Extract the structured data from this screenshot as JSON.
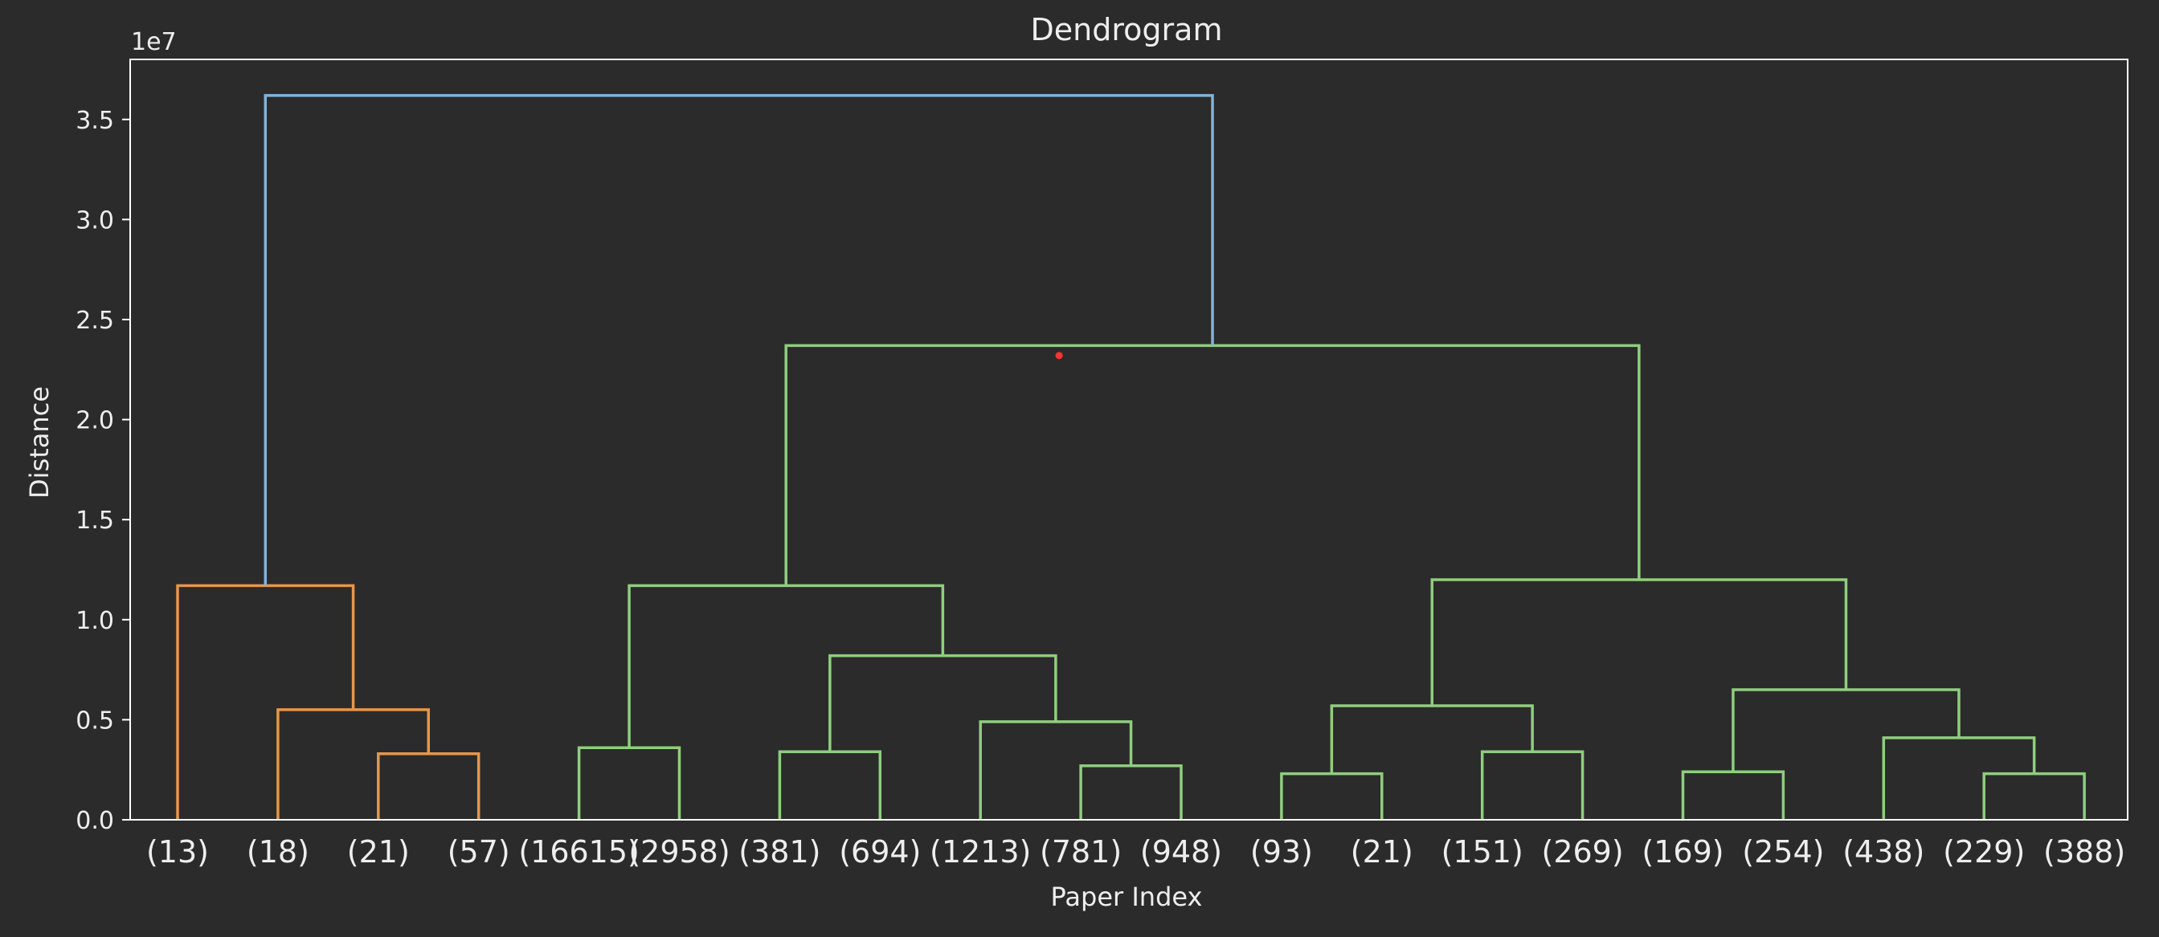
{
  "chart_data": {
    "type": "dendrogram",
    "title": "Dendrogram",
    "xlabel": "Paper Index",
    "ylabel": "Distance",
    "y_scale_label": "1e7",
    "ylim": [
      0,
      3.8
    ],
    "yticks": [
      0.0,
      0.5,
      1.0,
      1.5,
      2.0,
      2.5,
      3.0,
      3.5
    ],
    "grid": false,
    "colors": {
      "background": "#2b2b2b",
      "axes": "#ffffff",
      "text": "#eeeeee",
      "orange": "#e8964a",
      "green": "#8fce7e",
      "blue": "#7fb4dc",
      "marker": "#ff3333"
    },
    "leaves": [
      "(13)",
      "(18)",
      "(21)",
      "(57)",
      "(16615)",
      "(2958)",
      "(381)",
      "(694)",
      "(1213)",
      "(781)",
      "(948)",
      "(93)",
      "(21)",
      "(151)",
      "(269)",
      "(169)",
      "(254)",
      "(438)",
      "(229)",
      "(388)"
    ],
    "merges": [
      {
        "left": 2,
        "right": 3,
        "height": 0.33,
        "color": "orange"
      },
      {
        "left": 1,
        "right": "m0",
        "height": 0.55,
        "color": "orange"
      },
      {
        "left": 0,
        "right": "m1",
        "height": 1.17,
        "color": "orange"
      },
      {
        "left": 4,
        "right": 5,
        "height": 0.36,
        "color": "green"
      },
      {
        "left": 6,
        "right": 7,
        "height": 0.34,
        "color": "green"
      },
      {
        "left": 9,
        "right": 10,
        "height": 0.27,
        "color": "green"
      },
      {
        "left": 8,
        "right": "m5",
        "height": 0.49,
        "color": "green"
      },
      {
        "left": "m4",
        "right": "m6",
        "height": 0.82,
        "color": "green"
      },
      {
        "left": "m3",
        "right": "m7",
        "height": 1.17,
        "color": "green"
      },
      {
        "left": 11,
        "right": 12,
        "height": 0.23,
        "color": "green"
      },
      {
        "left": 13,
        "right": 14,
        "height": 0.34,
        "color": "green"
      },
      {
        "left": "m9",
        "right": "m10",
        "height": 0.57,
        "color": "green"
      },
      {
        "left": 15,
        "right": 16,
        "height": 0.24,
        "color": "green"
      },
      {
        "left": 18,
        "right": 19,
        "height": 0.23,
        "color": "green"
      },
      {
        "left": 17,
        "right": "m13",
        "height": 0.41,
        "color": "green"
      },
      {
        "left": "m12",
        "right": "m14",
        "height": 0.65,
        "color": "green"
      },
      {
        "left": "m11",
        "right": "m15",
        "height": 1.2,
        "color": "green"
      },
      {
        "left": "m8",
        "right": "m16",
        "height": 2.37,
        "color": "green"
      },
      {
        "left": "m2",
        "right": "m17",
        "height": 3.62,
        "color": "blue"
      }
    ],
    "marker_point": {
      "x_leaf_position": 9.0,
      "y": 2.32
    }
  }
}
